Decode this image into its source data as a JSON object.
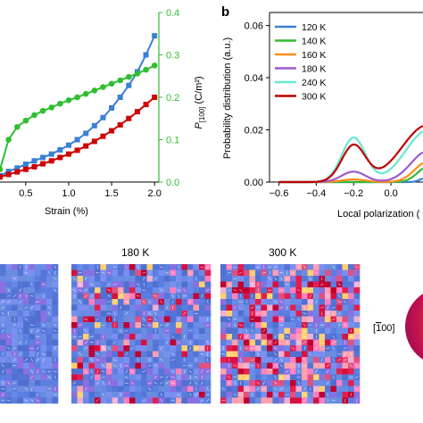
{
  "panel_b_letter": "b",
  "map_titles": [
    "180 K",
    "300 K"
  ],
  "sphere_label": "[̅0 0]",
  "sphere_label_text": "[100]",
  "colors": {
    "blue": "#3a7fd6",
    "red": "#cc0000",
    "green": "#2fbf2f",
    "map_bg": "#5b7fe0"
  },
  "chart_data": [
    {
      "type": "line",
      "panel": "a",
      "xlabel": "Strain (%)",
      "ylabel_right": "P[100] (C/m²)",
      "ylabel_right_main": "P",
      "ylabel_right_sub": "[100]",
      "ylabel_right_unit": " (C/m²)",
      "xlim": [
        0.2,
        2.05
      ],
      "ylim_right": [
        0,
        0.4
      ],
      "xticks": [
        "0.5",
        "1.0",
        "1.5",
        "2.0"
      ],
      "xtick_values": [
        0.5,
        1.0,
        1.5,
        2.0
      ],
      "yticks_right": [
        "0.0",
        "0.1",
        "0.2",
        "0.3",
        "0.4"
      ],
      "ytick_right_values": [
        0.0,
        0.1,
        0.2,
        0.3,
        0.4
      ],
      "series": [
        {
          "color": "#3a7fd6",
          "marker": "square",
          "x": [
            0.2,
            0.3,
            0.4,
            0.5,
            0.6,
            0.7,
            0.8,
            0.9,
            1.0,
            1.1,
            1.2,
            1.3,
            1.4,
            1.5,
            1.6,
            1.7,
            1.8,
            1.9,
            2.0
          ],
          "y": [
            0.015,
            0.025,
            0.033,
            0.042,
            0.05,
            0.058,
            0.066,
            0.076,
            0.087,
            0.1,
            0.115,
            0.133,
            0.152,
            0.175,
            0.2,
            0.228,
            0.26,
            0.3,
            0.345
          ]
        },
        {
          "color": "#cc0000",
          "marker": "square",
          "x": [
            0.2,
            0.3,
            0.4,
            0.5,
            0.6,
            0.7,
            0.8,
            0.9,
            1.0,
            1.1,
            1.2,
            1.3,
            1.4,
            1.5,
            1.6,
            1.7,
            1.8,
            1.9,
            2.0
          ],
          "y": [
            0.012,
            0.018,
            0.024,
            0.03,
            0.036,
            0.043,
            0.05,
            0.058,
            0.066,
            0.075,
            0.085,
            0.096,
            0.108,
            0.121,
            0.135,
            0.15,
            0.166,
            0.183,
            0.2
          ]
        },
        {
          "color": "#2fbf2f",
          "marker": "circle",
          "x": [
            0.2,
            0.3,
            0.4,
            0.5,
            0.6,
            0.7,
            0.8,
            0.9,
            1.0,
            1.1,
            1.2,
            1.3,
            1.4,
            1.5,
            1.6,
            1.7,
            1.8,
            1.9,
            2.0
          ],
          "y": [
            0.03,
            0.1,
            0.13,
            0.145,
            0.158,
            0.168,
            0.176,
            0.185,
            0.193,
            0.2,
            0.208,
            0.216,
            0.224,
            0.232,
            0.24,
            0.248,
            0.256,
            0.265,
            0.275
          ]
        }
      ]
    },
    {
      "type": "line",
      "panel": "b",
      "xlabel": "Local polarization (",
      "ylabel": "Probability distribution (a.u.)",
      "xlim": [
        -0.65,
        0.2
      ],
      "ylim": [
        0,
        0.065
      ],
      "xticks": [
        "−0.6",
        "−0.4",
        "−0.2",
        "0.0"
      ],
      "xtick_values": [
        -0.6,
        -0.4,
        -0.2,
        0.0
      ],
      "yticks": [
        "0.00",
        "0.02",
        "0.04",
        "0.06"
      ],
      "ytick_values": [
        0.0,
        0.02,
        0.04,
        0.06
      ],
      "legend_position": "top-left",
      "series": [
        {
          "name": "120 K",
          "color": "#3a7fd6"
        },
        {
          "name": "140 K",
          "color": "#33bb33"
        },
        {
          "name": "160 K",
          "color": "#ff8c1a"
        },
        {
          "name": "180 K",
          "color": "#9b59d0"
        },
        {
          "name": "240 K",
          "color": "#66e8d0"
        },
        {
          "name": "300 K",
          "color": "#c00000"
        }
      ]
    }
  ]
}
